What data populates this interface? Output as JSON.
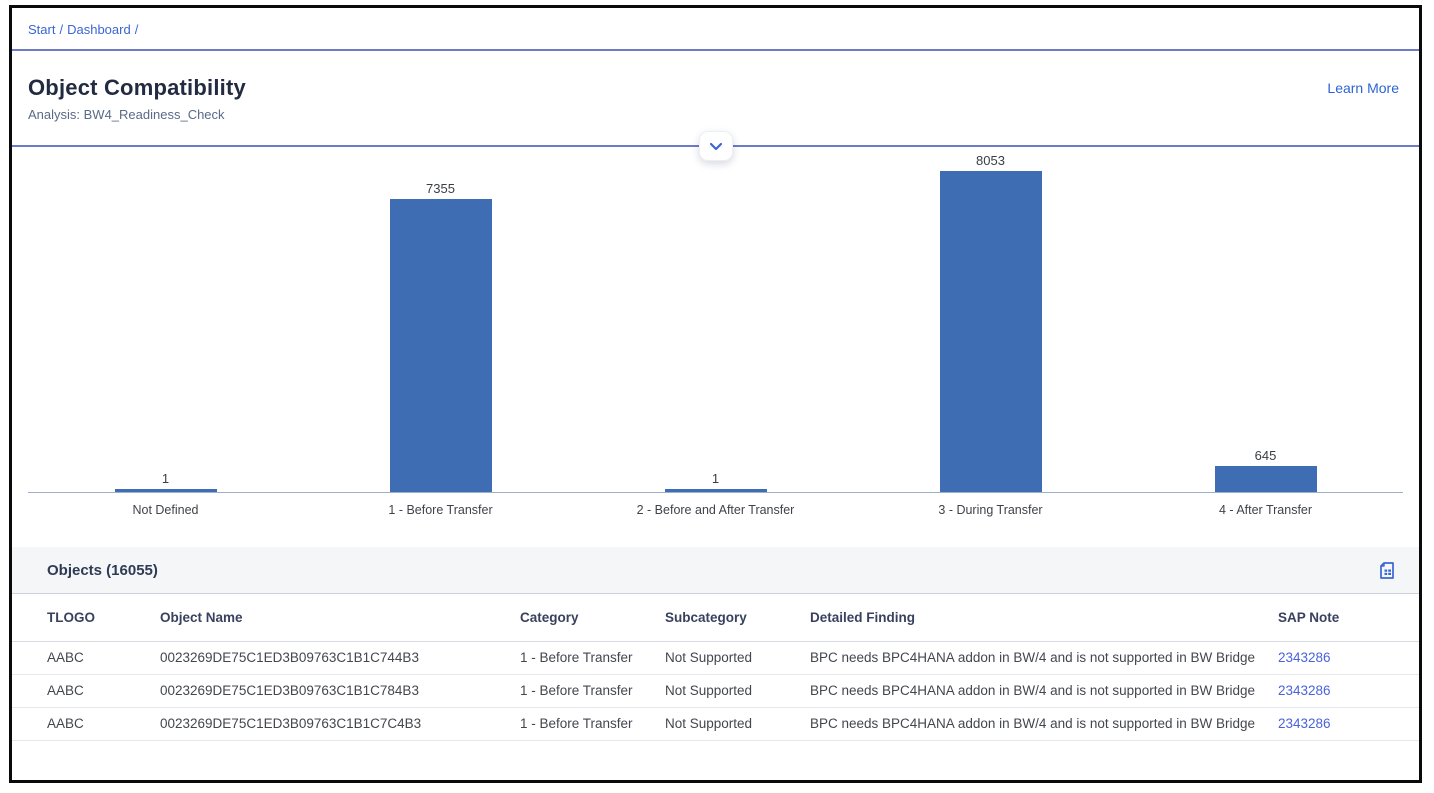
{
  "breadcrumb": {
    "separator": "/",
    "items": [
      "Start",
      "Dashboard"
    ]
  },
  "header": {
    "title": "Object Compatibility",
    "subtitle": "Analysis: BW4_Readiness_Check",
    "learn_more_label": "Learn More"
  },
  "chart_data": {
    "type": "bar",
    "title": "",
    "xlabel": "",
    "ylabel": "",
    "categories": [
      "Not Defined",
      "1 - Before Transfer",
      "2 - Before and After Transfer",
      "3 - During Transfer",
      "4 - After Transfer"
    ],
    "values": [
      1,
      7355,
      1,
      8053,
      645
    ],
    "ylim": [
      0,
      8053
    ],
    "grid": false,
    "legend": "none",
    "data_labels": true,
    "bar_color": "#3E6DB4",
    "axis_color": "#9CB0CB"
  },
  "table": {
    "title": "Objects (16055)",
    "toolbar_icons": [
      "export-to-spreadsheet-icon"
    ],
    "columns": [
      "TLOGO",
      "Object Name",
      "Category",
      "Subcategory",
      "Detailed Finding",
      "SAP Note"
    ],
    "rows": [
      [
        "AABC",
        "0023269DE75C1ED3B09763C1B1C744B3",
        "1 - Before Transfer",
        "Not Supported",
        "BPC needs BPC4HANA addon in BW/4 and is not supported in BW Bridge",
        "2343286"
      ],
      [
        "AABC",
        "0023269DE75C1ED3B09763C1B1C784B3",
        "1 - Before Transfer",
        "Not Supported",
        "BPC needs BPC4HANA addon in BW/4 and is not supported in BW Bridge",
        "2343286"
      ],
      [
        "AABC",
        "0023269DE75C1ED3B09763C1B1C7C4B3",
        "1 - Before Transfer",
        "Not Supported",
        "BPC needs BPC4HANA addon in BW/4 and is not supported in BW Bridge",
        "2343286"
      ]
    ]
  },
  "colors": {
    "link": "#3B65D3",
    "bar": "#3E6DB4",
    "title_text": "#232B41",
    "divider": "#6B7AC9"
  }
}
